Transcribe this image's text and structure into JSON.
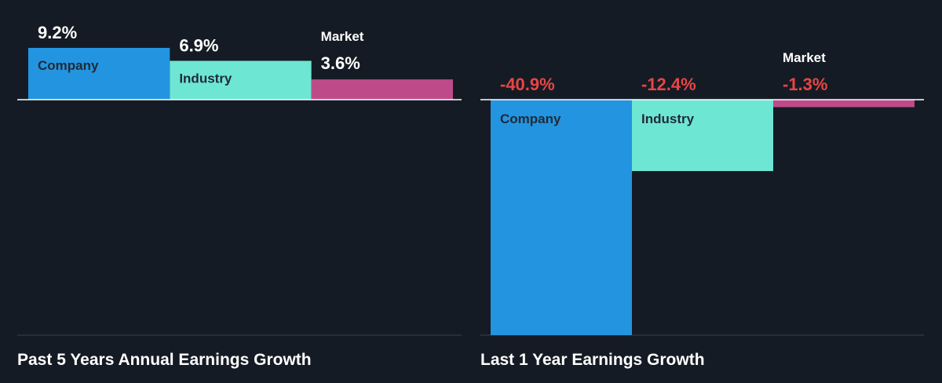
{
  "colors": {
    "background": "#151b24",
    "company": "#2394e0",
    "industry": "#6ee6d4",
    "market": "#bd4b8a",
    "positive_value_text": "#ffffff",
    "negative_value_text": "#e84545",
    "label_on_bar": "#1f2a36",
    "label_off_bar": "#ffffff",
    "axis_line": "#ffffff",
    "baseline_line": "#3a424d"
  },
  "chart_data": [
    {
      "type": "bar",
      "title": "Past 5 Years Annual Earnings Growth",
      "categories": [
        "Company",
        "Industry",
        "Market"
      ],
      "values": [
        9.2,
        6.9,
        3.6
      ],
      "value_labels": [
        "9.2%",
        "6.9%",
        "3.6%"
      ],
      "unit": "%"
    },
    {
      "type": "bar",
      "title": "Last 1 Year Earnings Growth",
      "categories": [
        "Company",
        "Industry",
        "Market"
      ],
      "values": [
        -40.9,
        -12.4,
        -1.3
      ],
      "value_labels": [
        "-40.9%",
        "-12.4%",
        "-1.3%"
      ],
      "unit": "%"
    }
  ]
}
